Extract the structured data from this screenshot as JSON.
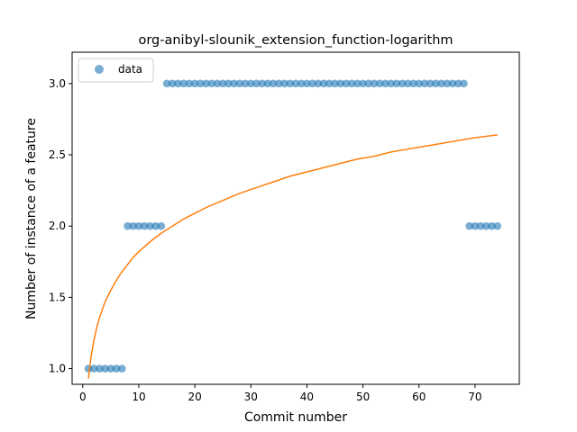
{
  "chart_data": {
    "type": "scatter",
    "title": "org-anibyl-slounik_extension_function-logarithm",
    "xlabel": "Commit number",
    "ylabel": "Number of instance of a feature",
    "xlim": [
      -1.9,
      77.9
    ],
    "ylim": [
      0.89,
      3.22
    ],
    "xticks": [
      0,
      10,
      20,
      30,
      40,
      50,
      60,
      70
    ],
    "yticks": [
      1.0,
      1.5,
      2.0,
      2.5,
      3.0
    ],
    "xtick_labels": [
      "0",
      "10",
      "20",
      "30",
      "40",
      "50",
      "60",
      "70"
    ],
    "ytick_labels": [
      "1.0",
      "1.5",
      "2.0",
      "2.5",
      "3.0"
    ],
    "grid": false,
    "legend": {
      "position": "top-left",
      "entries": [
        "data"
      ]
    },
    "series": [
      {
        "name": "data",
        "kind": "scatter",
        "color": "#1f77b4",
        "x": [
          1,
          2,
          3,
          4,
          5,
          6,
          7,
          8,
          9,
          10,
          11,
          12,
          13,
          14,
          15,
          16,
          17,
          18,
          19,
          20,
          21,
          22,
          23,
          24,
          25,
          26,
          27,
          28,
          29,
          30,
          31,
          32,
          33,
          34,
          35,
          36,
          37,
          38,
          39,
          40,
          41,
          42,
          43,
          44,
          45,
          46,
          47,
          48,
          49,
          50,
          51,
          52,
          53,
          54,
          55,
          56,
          57,
          58,
          59,
          60,
          61,
          62,
          63,
          64,
          65,
          66,
          67,
          68,
          69,
          70,
          71,
          72,
          73,
          74
        ],
        "y": [
          1,
          1,
          1,
          1,
          1,
          1,
          1,
          2,
          2,
          2,
          2,
          2,
          2,
          2,
          3,
          3,
          3,
          3,
          3,
          3,
          3,
          3,
          3,
          3,
          3,
          3,
          3,
          3,
          3,
          3,
          3,
          3,
          3,
          3,
          3,
          3,
          3,
          3,
          3,
          3,
          3,
          3,
          3,
          3,
          3,
          3,
          3,
          3,
          3,
          3,
          3,
          3,
          3,
          3,
          3,
          3,
          3,
          3,
          3,
          3,
          3,
          3,
          3,
          3,
          3,
          3,
          3,
          3,
          2,
          2,
          2,
          2,
          2,
          2
        ]
      },
      {
        "kind": "line",
        "color": "#ff7f0e",
        "x": [
          1,
          1.5,
          2,
          2.5,
          3,
          4,
          5,
          6,
          7,
          8,
          9,
          10,
          12,
          14,
          16,
          18,
          20,
          22,
          25,
          28,
          31,
          34,
          37,
          40,
          43,
          46,
          49,
          52,
          55,
          58,
          61,
          64,
          67,
          70,
          72,
          74
        ],
        "y": [
          0.93,
          1.09,
          1.2,
          1.29,
          1.36,
          1.47,
          1.55,
          1.62,
          1.68,
          1.73,
          1.78,
          1.82,
          1.89,
          1.95,
          2.0,
          2.05,
          2.09,
          2.13,
          2.18,
          2.23,
          2.27,
          2.31,
          2.35,
          2.38,
          2.41,
          2.44,
          2.47,
          2.49,
          2.52,
          2.54,
          2.56,
          2.58,
          2.6,
          2.62,
          2.63,
          2.64
        ]
      }
    ]
  }
}
